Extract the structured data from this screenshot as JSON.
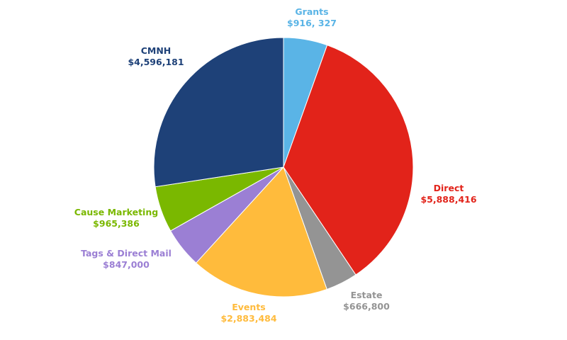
{
  "chart_data": {
    "type": "pie",
    "title": "",
    "start": "top",
    "direction": "clockwise",
    "slices": [
      {
        "name": "Grants",
        "value": 916327,
        "label": "Grants",
        "value_label": "$916, 327",
        "color": "#5ab4e6"
      },
      {
        "name": "Direct",
        "value": 5888416,
        "label": "Direct",
        "value_label": "$5,888,416",
        "color": "#e2231a"
      },
      {
        "name": "Estate",
        "value": 666800,
        "label": "Estate",
        "value_label": "$666,800",
        "color": "#949494"
      },
      {
        "name": "Events",
        "value": 2883484,
        "label": "Events",
        "value_label": "$2,883,484",
        "color": "#ffbb3c"
      },
      {
        "name": "Tags & Direct Mail",
        "value": 847000,
        "label": "Tags & Direct Mail",
        "value_label": "$847,000",
        "color": "#9b7fd4"
      },
      {
        "name": "Cause Marketing",
        "value": 965386,
        "label": "Cause Marketing",
        "value_label": "$965,386",
        "color": "#7ab800"
      },
      {
        "name": "CMNH",
        "value": 4596181,
        "label": "CMNH",
        "value_label": "$4,596,181",
        "color": "#1e4178"
      }
    ]
  }
}
